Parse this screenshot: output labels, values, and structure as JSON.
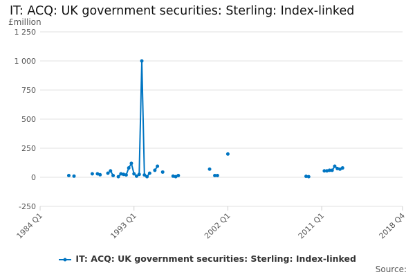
{
  "title": "IT: ACQ: UK government securities: Sterling: Index-linked",
  "source_label": "Source:",
  "chart_data": {
    "type": "line",
    "title": "IT: ACQ: UK government securities: Sterling: Index-linked",
    "ylabel": "£million",
    "ylim": [
      -250,
      1250
    ],
    "yticks": [
      -250,
      0,
      250,
      500,
      750,
      "1 000",
      "1 250"
    ],
    "ytick_values": [
      -250,
      0,
      250,
      500,
      750,
      1000,
      1250
    ],
    "ytick_labels": [
      "-250",
      "0",
      "250",
      "500",
      "750",
      "1 000",
      "1 250"
    ],
    "xlim": [
      "1984 Q1",
      "2018 Q4"
    ],
    "xtick_labels": [
      "1984 Q1",
      "1993 Q1",
      "2002 Q1",
      "2011 Q1",
      "2018 Q4"
    ],
    "grid": true,
    "legend_position": "bottom",
    "color": "#0075c2",
    "series": [
      {
        "name": "IT: ACQ: UK government securities: Sterling: Index-linked",
        "points": [
          [
            "1986 Q4",
            15
          ],
          [
            "1987 Q2",
            10
          ],
          [
            "1989 Q1",
            30
          ],
          [
            "1989 Q3",
            30
          ],
          [
            "1989 Q4",
            22
          ],
          [
            "1990 Q3",
            35
          ],
          [
            "1990 Q4",
            55
          ],
          [
            "1991 Q1",
            15
          ],
          [
            "1991 Q3",
            5
          ],
          [
            "1991 Q4",
            30
          ],
          [
            "1992 Q1",
            25
          ],
          [
            "1992 Q2",
            20
          ],
          [
            "1992 Q3",
            80
          ],
          [
            "1992 Q4",
            120
          ],
          [
            "1993 Q1",
            30
          ],
          [
            "1993 Q2",
            10
          ],
          [
            "1993 Q3",
            25
          ],
          [
            "1993 Q4",
            1000
          ],
          [
            "1994 Q1",
            20
          ],
          [
            "1994 Q2",
            5
          ],
          [
            "1994 Q3",
            35
          ],
          [
            "1995 Q1",
            60
          ],
          [
            "1995 Q2",
            95
          ],
          [
            "1995 Q4",
            45
          ],
          [
            "1996 Q4",
            10
          ],
          [
            "1997 Q1",
            5
          ],
          [
            "1997 Q2",
            15
          ],
          [
            "2000 Q2",
            70
          ],
          [
            "2000 Q4",
            15
          ],
          [
            "2001 Q1",
            15
          ],
          [
            "2002 Q1",
            200
          ],
          [
            "2009 Q3",
            8
          ],
          [
            "2009 Q4",
            5
          ],
          [
            "2011 Q2",
            55
          ],
          [
            "2011 Q3",
            55
          ],
          [
            "2011 Q4",
            60
          ],
          [
            "2012 Q1",
            60
          ],
          [
            "2012 Q2",
            95
          ],
          [
            "2012 Q3",
            75
          ],
          [
            "2012 Q4",
            70
          ],
          [
            "2013 Q1",
            80
          ]
        ]
      }
    ]
  }
}
